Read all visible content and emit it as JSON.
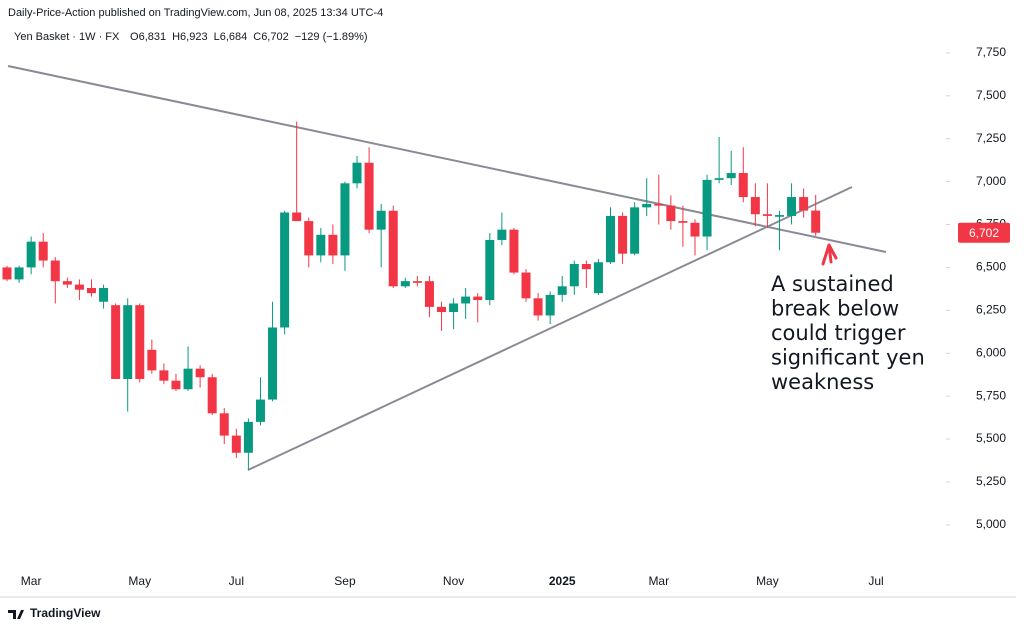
{
  "chart_data": {
    "type": "candlestick",
    "attribution": "Daily-Price-Action published on TradingView.com, Jun 08, 2025 13:34 UTC-4",
    "symbol": "Yen Basket · 1W · FX",
    "ohlc_header": [
      "O6,831",
      "H6,923",
      "L6,684",
      "C6,702",
      "−129 (−1.89%)"
    ],
    "categories": [
      null,
      null,
      "Mar",
      null,
      null,
      null,
      null,
      null,
      null,
      null,
      null,
      "May",
      null,
      null,
      null,
      null,
      null,
      null,
      null,
      "Jul",
      null,
      null,
      null,
      null,
      null,
      null,
      null,
      null,
      "Sep",
      null,
      null,
      null,
      null,
      null,
      null,
      null,
      null,
      "Nov",
      null,
      null,
      null,
      null,
      null,
      null,
      null,
      null,
      "2025",
      null,
      null,
      null,
      null,
      null,
      null,
      null,
      "Mar",
      null,
      null,
      null,
      null,
      null,
      null,
      null,
      null,
      "May",
      null,
      null,
      null,
      null,
      null,
      null,
      null,
      null,
      "Jul",
      null,
      null,
      null,
      null,
      null
    ],
    "open": [
      6500,
      6430,
      6500,
      6650,
      6540,
      6420,
      6400,
      6380,
      6300,
      6280,
      5850,
      6280,
      6020,
      5900,
      5840,
      5790,
      5910,
      5860,
      5650,
      5520,
      5420,
      5600,
      5730,
      6150,
      6820,
      6770,
      6570,
      6690,
      6570,
      6990,
      7110,
      6720,
      6830,
      6390,
      6420,
      6420,
      6270,
      6240,
      6290,
      6330,
      6310,
      6660,
      6720,
      6470,
      6320,
      6220,
      6340,
      6390,
      6520,
      6350,
      6530,
      6800,
      6580,
      6850,
      6870,
      6860,
      6770,
      6760,
      6680,
      7010,
      7020,
      7050,
      6910,
      6810,
      6795,
      6800,
      6910,
      6831,
      null,
      null,
      null,
      null,
      null,
      null,
      null,
      null,
      null,
      null
    ],
    "high": [
      6510,
      6510,
      6680,
      6700,
      6560,
      6440,
      6430,
      6430,
      6400,
      6290,
      6320,
      6290,
      6080,
      5940,
      5880,
      6040,
      5930,
      5880,
      5680,
      5560,
      5620,
      5860,
      6300,
      6830,
      7350,
      6790,
      6730,
      6750,
      7000,
      7150,
      7200,
      6870,
      6860,
      6440,
      6450,
      6450,
      6300,
      6320,
      6380,
      6350,
      6700,
      6820,
      6730,
      6490,
      6350,
      6360,
      6450,
      6540,
      6540,
      6550,
      6850,
      6820,
      6880,
      7020,
      7040,
      6920,
      6860,
      6780,
      7040,
      7260,
      7180,
      7200,
      6990,
      6990,
      6830,
      6990,
      6960,
      6923,
      null,
      null,
      null,
      null,
      null,
      null,
      null,
      null,
      null,
      null
    ],
    "low": [
      6420,
      6410,
      6460,
      6500,
      6290,
      6380,
      6310,
      6330,
      6260,
      5850,
      5660,
      5830,
      5880,
      5820,
      5780,
      5780,
      5800,
      5640,
      5470,
      5390,
      5320,
      5580,
      5720,
      6110,
      6770,
      6500,
      6530,
      6520,
      6480,
      6960,
      6700,
      6500,
      6380,
      6380,
      6390,
      6210,
      6130,
      6140,
      6200,
      6180,
      6280,
      6630,
      6460,
      6300,
      6190,
      6170,
      6300,
      6340,
      6380,
      6340,
      6520,
      6520,
      6570,
      6800,
      6750,
      6720,
      6620,
      6570,
      6600,
      6990,
      6980,
      6880,
      6740,
      6730,
      6600,
      6750,
      6790,
      6684,
      null,
      null,
      null,
      null,
      null,
      null,
      null,
      null,
      null,
      null
    ],
    "close": [
      6430,
      6500,
      6650,
      6540,
      6420,
      6400,
      6370,
      6350,
      6380,
      5850,
      6280,
      5850,
      5900,
      5840,
      5790,
      5910,
      5860,
      5650,
      5520,
      5420,
      5600,
      5730,
      6150,
      6820,
      6770,
      6570,
      6690,
      6570,
      6990,
      7110,
      6720,
      6830,
      6390,
      6420,
      6410,
      6270,
      6240,
      6290,
      6330,
      6310,
      6660,
      6720,
      6470,
      6320,
      6220,
      6340,
      6390,
      6520,
      6490,
      6530,
      6800,
      6580,
      6850,
      6870,
      6860,
      6770,
      6760,
      6680,
      7010,
      7020,
      7050,
      6910,
      6810,
      6800,
      6805,
      6910,
      6831,
      6702,
      null,
      null,
      null,
      null,
      null,
      null,
      null,
      null,
      null,
      null
    ],
    "up_color": "#089981",
    "down_color": "#f23645",
    "ylim": [
      4766,
      7930
    ],
    "yticks": [
      {
        "value": 5000,
        "label": "5,000"
      },
      {
        "value": 5250,
        "label": "5,250"
      },
      {
        "value": 5500,
        "label": "5,500"
      },
      {
        "value": 5750,
        "label": "5,750"
      },
      {
        "value": 6000,
        "label": "6,000"
      },
      {
        "value": 6250,
        "label": "6,250"
      },
      {
        "value": 6500,
        "label": "6,500"
      },
      {
        "value": 6750,
        "label": "6,750"
      },
      {
        "value": 7000,
        "label": "7,000"
      },
      {
        "value": 7250,
        "label": "7,250"
      },
      {
        "value": 7500,
        "label": "7,500"
      },
      {
        "value": 7750,
        "label": "7,750"
      }
    ],
    "last_price": {
      "value": 6702,
      "label": "6,702"
    },
    "annotation": [
      "A sustained",
      "break below",
      "could trigger",
      "significant yen",
      "weakness"
    ],
    "footer": "TradingView"
  }
}
